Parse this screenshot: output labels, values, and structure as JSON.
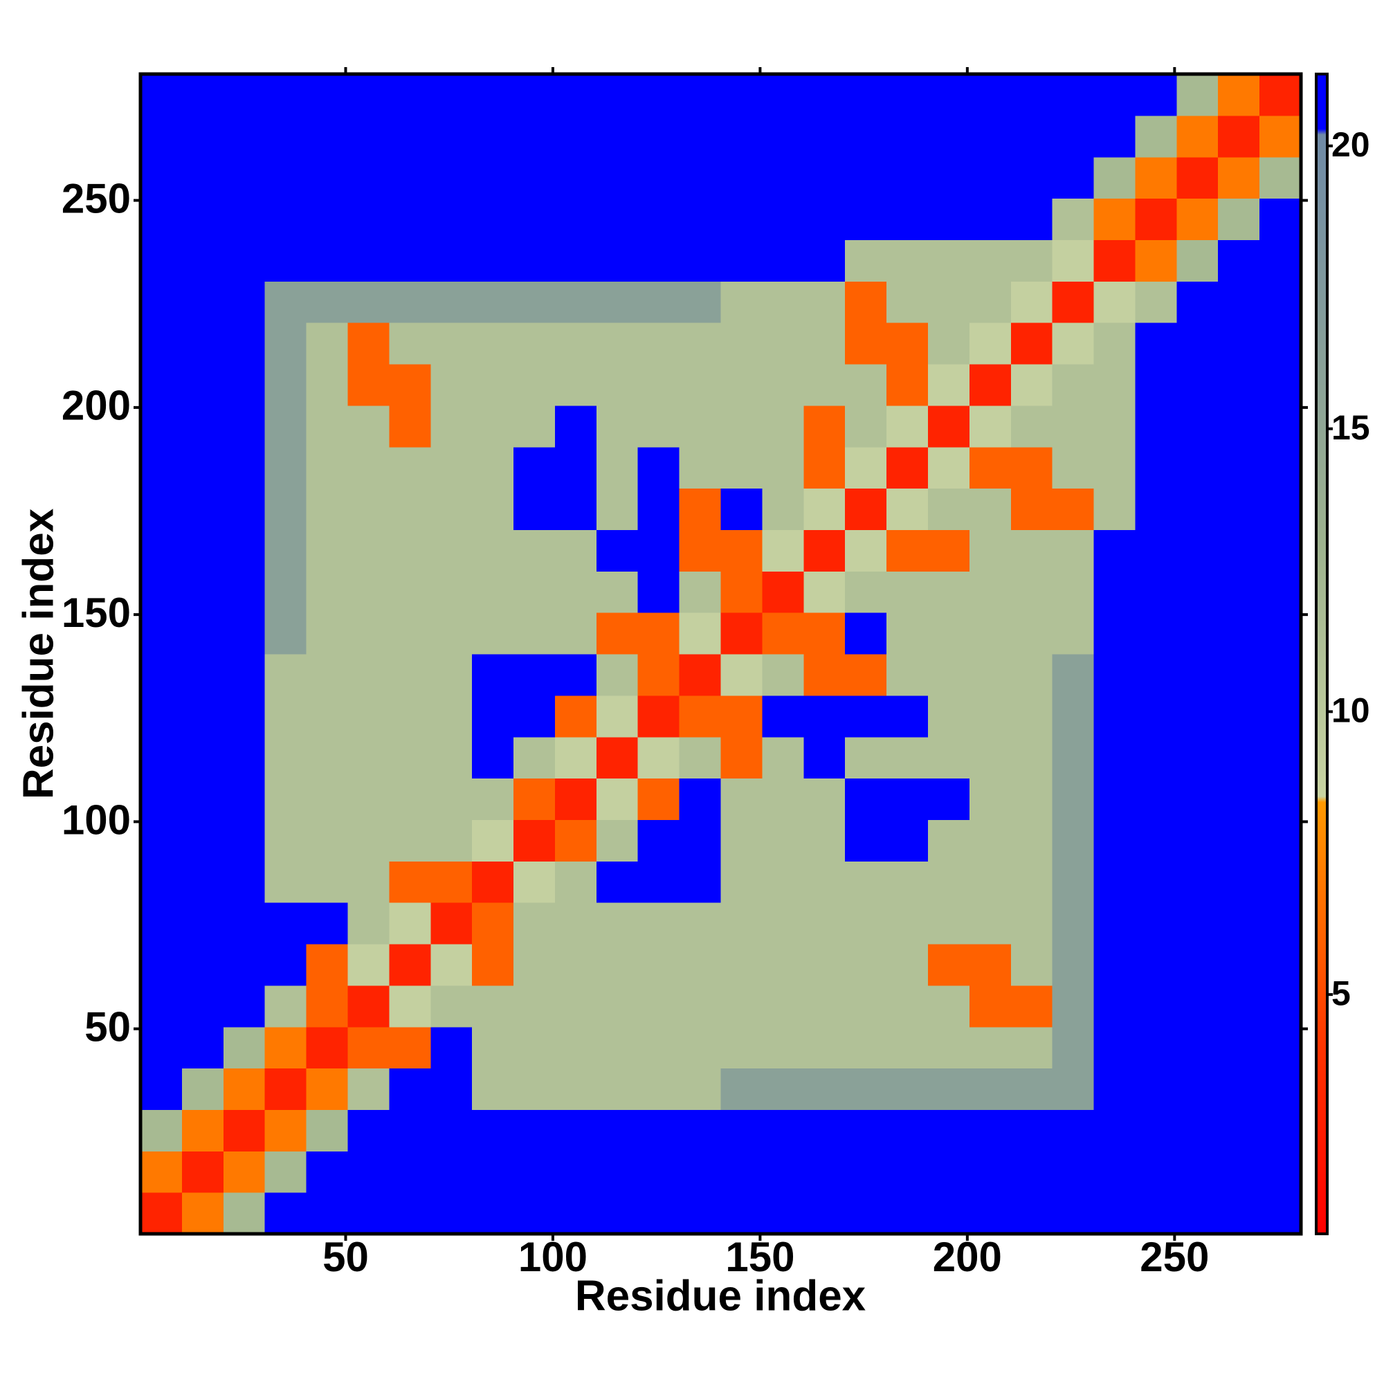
{
  "chart_data": {
    "type": "heatmap",
    "xlabel": "Residue index",
    "ylabel": "Residue index",
    "xbins": [
      0.5,
      10.5,
      20.5,
      30.5,
      40.5,
      50.5,
      60.5,
      70.5,
      80.5,
      90.5,
      100.5,
      110.5,
      120.5,
      130.5,
      140.5,
      150.5,
      160.5,
      170.5,
      180.5,
      190.5,
      200.5,
      210.5,
      220.5,
      230.5,
      240.5,
      250.5,
      260.5,
      270.5,
      280.5
    ],
    "ybins": [
      0.5,
      10.5,
      20.5,
      30.5,
      40.5,
      50.5,
      60.5,
      70.5,
      80.5,
      90.5,
      100.5,
      110.5,
      120.5,
      130.5,
      140.5,
      150.5,
      160.5,
      170.5,
      180.5,
      190.5,
      200.5,
      210.5,
      220.5,
      230.5,
      240.5,
      250.5,
      260.5,
      270.5,
      280.5
    ],
    "z": [
      [
        3,
        7,
        12,
        21,
        21,
        21,
        21,
        21,
        21,
        21,
        21,
        21,
        21,
        21,
        21,
        21,
        21,
        21,
        21,
        21,
        21,
        21,
        21,
        21,
        21,
        21,
        21,
        21
      ],
      [
        7,
        3,
        7,
        12,
        21,
        21,
        21,
        21,
        21,
        21,
        21,
        21,
        21,
        21,
        21,
        21,
        21,
        21,
        21,
        21,
        21,
        21,
        21,
        21,
        21,
        21,
        21,
        21
      ],
      [
        12,
        7,
        3,
        7,
        12,
        21,
        21,
        21,
        21,
        21,
        21,
        21,
        21,
        21,
        21,
        21,
        21,
        21,
        21,
        21,
        21,
        21,
        21,
        21,
        21,
        21,
        21,
        21
      ],
      [
        21,
        12,
        7,
        3,
        7,
        11,
        21,
        21,
        11,
        11,
        11,
        11,
        11,
        11,
        16,
        16,
        16,
        16,
        16,
        16,
        16,
        16,
        16,
        21,
        21,
        21,
        21,
        21
      ],
      [
        21,
        21,
        12,
        7,
        3,
        6,
        6,
        21,
        11,
        11,
        11,
        11,
        11,
        11,
        11,
        11,
        11,
        11,
        11,
        11,
        11,
        11,
        16,
        21,
        21,
        21,
        21,
        21
      ],
      [
        21,
        21,
        21,
        11,
        6,
        3,
        9,
        11,
        11,
        11,
        11,
        11,
        11,
        11,
        11,
        11,
        11,
        11,
        11,
        11,
        6,
        6,
        16,
        21,
        21,
        21,
        21,
        21
      ],
      [
        21,
        21,
        21,
        21,
        6,
        9,
        3,
        9,
        6,
        11,
        11,
        11,
        11,
        11,
        11,
        11,
        11,
        11,
        11,
        6,
        6,
        11,
        16,
        21,
        21,
        21,
        21,
        21
      ],
      [
        21,
        21,
        21,
        21,
        21,
        11,
        9,
        3,
        6,
        11,
        11,
        11,
        11,
        11,
        11,
        11,
        11,
        11,
        11,
        11,
        11,
        11,
        16,
        21,
        21,
        21,
        21,
        21
      ],
      [
        21,
        21,
        21,
        11,
        11,
        11,
        6,
        6,
        3,
        9,
        11,
        21,
        21,
        21,
        11,
        11,
        11,
        11,
        11,
        11,
        11,
        11,
        16,
        21,
        21,
        21,
        21,
        21
      ],
      [
        21,
        21,
        21,
        11,
        11,
        11,
        11,
        11,
        9,
        3,
        6,
        11,
        21,
        21,
        11,
        11,
        11,
        21,
        21,
        11,
        11,
        11,
        16,
        21,
        21,
        21,
        21,
        21
      ],
      [
        21,
        21,
        21,
        11,
        11,
        11,
        11,
        11,
        11,
        6,
        3,
        9,
        6,
        21,
        11,
        11,
        11,
        21,
        21,
        21,
        11,
        11,
        16,
        21,
        21,
        21,
        21,
        21
      ],
      [
        21,
        21,
        21,
        11,
        11,
        11,
        11,
        11,
        21,
        11,
        9,
        3,
        9,
        11,
        6,
        11,
        21,
        11,
        11,
        11,
        11,
        11,
        16,
        21,
        21,
        21,
        21,
        21
      ],
      [
        21,
        21,
        21,
        11,
        11,
        11,
        11,
        11,
        21,
        21,
        6,
        9,
        3,
        6,
        6,
        21,
        21,
        21,
        21,
        11,
        11,
        11,
        16,
        21,
        21,
        21,
        21,
        21
      ],
      [
        21,
        21,
        21,
        11,
        11,
        11,
        11,
        11,
        21,
        21,
        21,
        11,
        6,
        3,
        9,
        11,
        6,
        6,
        11,
        11,
        11,
        11,
        16,
        21,
        21,
        21,
        21,
        21
      ],
      [
        21,
        21,
        21,
        16,
        11,
        11,
        11,
        11,
        11,
        11,
        11,
        6,
        6,
        9,
        3,
        6,
        6,
        21,
        11,
        11,
        11,
        11,
        11,
        21,
        21,
        21,
        21,
        21
      ],
      [
        21,
        21,
        21,
        16,
        11,
        11,
        11,
        11,
        11,
        11,
        11,
        11,
        21,
        11,
        6,
        3,
        9,
        11,
        11,
        11,
        11,
        11,
        11,
        21,
        21,
        21,
        21,
        21
      ],
      [
        21,
        21,
        21,
        16,
        11,
        11,
        11,
        11,
        11,
        11,
        11,
        21,
        21,
        6,
        6,
        9,
        3,
        9,
        6,
        6,
        11,
        11,
        11,
        21,
        21,
        21,
        21,
        21
      ],
      [
        21,
        21,
        21,
        16,
        11,
        11,
        11,
        11,
        11,
        21,
        21,
        11,
        21,
        6,
        21,
        11,
        9,
        3,
        9,
        11,
        11,
        6,
        6,
        11,
        21,
        21,
        21,
        21
      ],
      [
        21,
        21,
        21,
        16,
        11,
        11,
        11,
        11,
        11,
        21,
        21,
        11,
        21,
        11,
        11,
        11,
        6,
        9,
        3,
        9,
        6,
        6,
        11,
        11,
        21,
        21,
        21,
        21
      ],
      [
        21,
        21,
        21,
        16,
        11,
        11,
        6,
        11,
        11,
        11,
        21,
        11,
        11,
        11,
        11,
        11,
        6,
        11,
        9,
        3,
        9,
        11,
        11,
        11,
        21,
        21,
        21,
        21
      ],
      [
        21,
        21,
        21,
        16,
        11,
        6,
        6,
        11,
        11,
        11,
        11,
        11,
        11,
        11,
        11,
        11,
        11,
        11,
        6,
        9,
        3,
        9,
        11,
        11,
        21,
        21,
        21,
        21
      ],
      [
        21,
        21,
        21,
        16,
        11,
        6,
        11,
        11,
        11,
        11,
        11,
        11,
        11,
        11,
        11,
        11,
        11,
        6,
        6,
        11,
        9,
        3,
        9,
        11,
        21,
        21,
        21,
        21
      ],
      [
        21,
        21,
        21,
        16,
        16,
        16,
        16,
        16,
        16,
        16,
        16,
        16,
        16,
        16,
        11,
        11,
        11,
        6,
        11,
        11,
        11,
        9,
        3,
        9,
        11,
        21,
        21,
        21
      ],
      [
        21,
        21,
        21,
        21,
        21,
        21,
        21,
        21,
        21,
        21,
        21,
        21,
        21,
        21,
        21,
        21,
        21,
        11,
        11,
        11,
        11,
        11,
        9,
        3,
        7,
        12,
        21,
        21
      ],
      [
        21,
        21,
        21,
        21,
        21,
        21,
        21,
        21,
        21,
        21,
        21,
        21,
        21,
        21,
        21,
        21,
        21,
        21,
        21,
        21,
        21,
        21,
        11,
        7,
        3,
        7,
        12,
        21
      ],
      [
        21,
        21,
        21,
        21,
        21,
        21,
        21,
        21,
        21,
        21,
        21,
        21,
        21,
        21,
        21,
        21,
        21,
        21,
        21,
        21,
        21,
        21,
        21,
        12,
        7,
        3,
        7,
        12
      ],
      [
        21,
        21,
        21,
        21,
        21,
        21,
        21,
        21,
        21,
        21,
        21,
        21,
        21,
        21,
        21,
        21,
        21,
        21,
        21,
        21,
        21,
        21,
        21,
        21,
        12,
        7,
        3,
        7
      ],
      [
        21,
        21,
        21,
        21,
        21,
        21,
        21,
        21,
        21,
        21,
        21,
        21,
        21,
        21,
        21,
        21,
        21,
        21,
        21,
        21,
        21,
        21,
        21,
        21,
        21,
        12,
        7,
        3
      ]
    ],
    "xlim": [
      0.5,
      280.5
    ],
    "ylim": [
      0.5,
      280.5
    ],
    "xticks": [
      50,
      100,
      150,
      200,
      250
    ],
    "yticks": [
      50,
      100,
      150,
      200,
      250
    ],
    "zlim": [
      0.77,
      21.27
    ],
    "zticks": [
      5,
      10,
      15,
      20
    ],
    "colorscale": [
      {
        "value": 0.77,
        "color": "#ff0000"
      },
      {
        "value": 4,
        "color": "#ff3300"
      },
      {
        "value": 8.4,
        "color": "#ff9900"
      },
      {
        "value": 8.5,
        "color": "#c9d4a2"
      },
      {
        "value": 13,
        "color": "#9db28e"
      },
      {
        "value": 20.2,
        "color": "#6f8aa6"
      },
      {
        "value": 20.3,
        "color": "#0000ff"
      },
      {
        "value": 21.27,
        "color": "#0000ff"
      }
    ]
  }
}
